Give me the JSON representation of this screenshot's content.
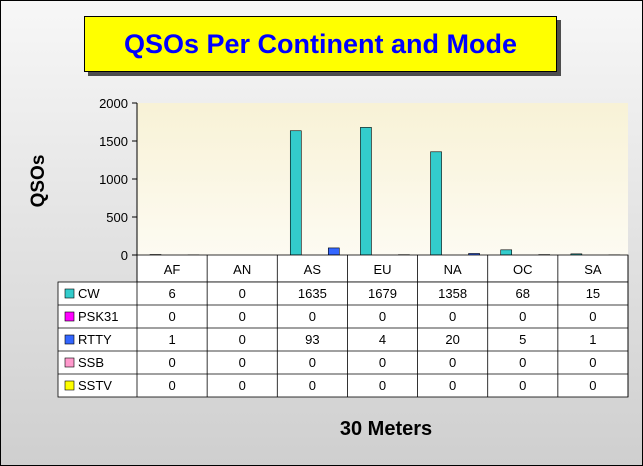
{
  "chart_data": {
    "type": "bar",
    "title": "QSOs Per Continent and Mode",
    "xlabel": "30 Meters",
    "ylabel": "QSOs",
    "ylim": [
      0,
      2000
    ],
    "yticks": [
      0,
      500,
      1000,
      1500,
      2000
    ],
    "grid": false,
    "legend": "data-table",
    "categories": [
      "AF",
      "AN",
      "AS",
      "EU",
      "NA",
      "OC",
      "SA"
    ],
    "series": [
      {
        "name": "CW",
        "color": "#33cccc",
        "values": [
          6,
          0,
          1635,
          1679,
          1358,
          68,
          15
        ]
      },
      {
        "name": "PSK31",
        "color": "#ff00ff",
        "values": [
          0,
          0,
          0,
          0,
          0,
          0,
          0
        ]
      },
      {
        "name": "RTTY",
        "color": "#3366ff",
        "values": [
          1,
          0,
          93,
          4,
          20,
          5,
          1
        ]
      },
      {
        "name": "SSB",
        "color": "#ff99cc",
        "values": [
          0,
          0,
          0,
          0,
          0,
          0,
          0
        ]
      },
      {
        "name": "SSTV",
        "color": "#ffff00",
        "values": [
          0,
          0,
          0,
          0,
          0,
          0,
          0
        ]
      }
    ]
  }
}
